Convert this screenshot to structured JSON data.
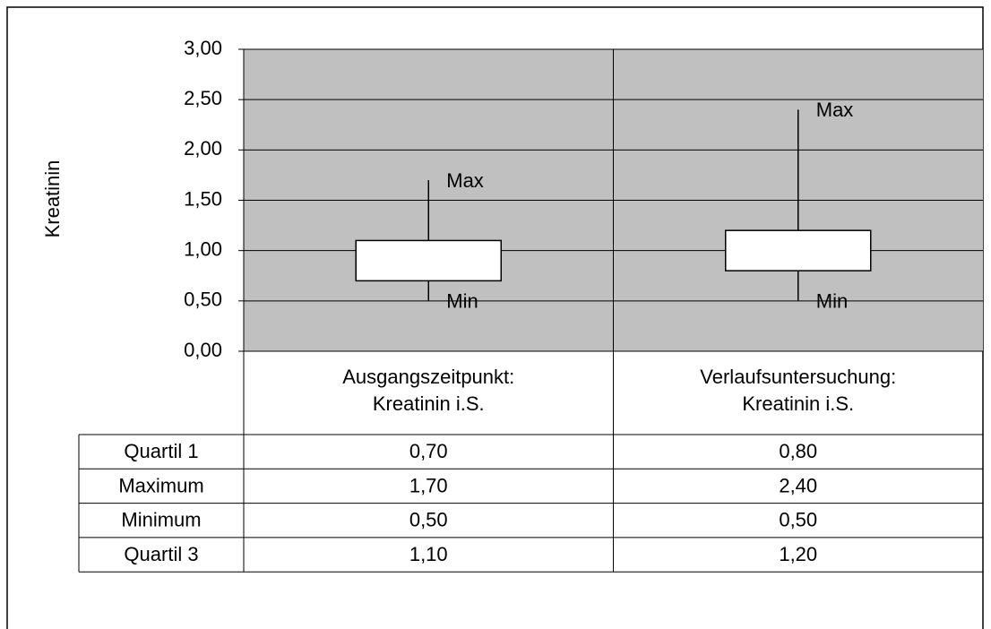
{
  "chart_data": {
    "type": "box",
    "y_label": "Kreatinin",
    "categories": [
      "Ausgangszeitpunkt: Kreatinin i.S.",
      "Verlaufsuntersuchung: Kreatinin i.S."
    ],
    "series": [
      {
        "name": "Quartil 1",
        "values": [
          0.7,
          0.8
        ],
        "value_labels": [
          "0,70",
          "0,80"
        ]
      },
      {
        "name": "Maximum",
        "values": [
          1.7,
          2.4
        ],
        "value_labels": [
          "1,70",
          "2,40"
        ]
      },
      {
        "name": "Minimum",
        "values": [
          0.5,
          0.5
        ],
        "value_labels": [
          "0,50",
          "0,50"
        ]
      },
      {
        "name": "Quartil 3",
        "values": [
          1.1,
          1.2
        ],
        "value_labels": [
          "1,10",
          "1,20"
        ]
      }
    ],
    "annotations": {
      "max": "Max",
      "min": "Min"
    },
    "ylim": [
      0,
      3
    ],
    "yticks": [
      {
        "value": 0,
        "label": "0,00"
      },
      {
        "value": 0.5,
        "label": "0,50"
      },
      {
        "value": 1,
        "label": "1,00"
      },
      {
        "value": 1.5,
        "label": "1,50"
      },
      {
        "value": 2,
        "label": "2,00"
      },
      {
        "value": 2.5,
        "label": "2,50"
      },
      {
        "value": 3,
        "label": "3,00"
      }
    ],
    "grid": true,
    "plot_background": "#c0c0c0",
    "box_color": "#ffffff"
  }
}
